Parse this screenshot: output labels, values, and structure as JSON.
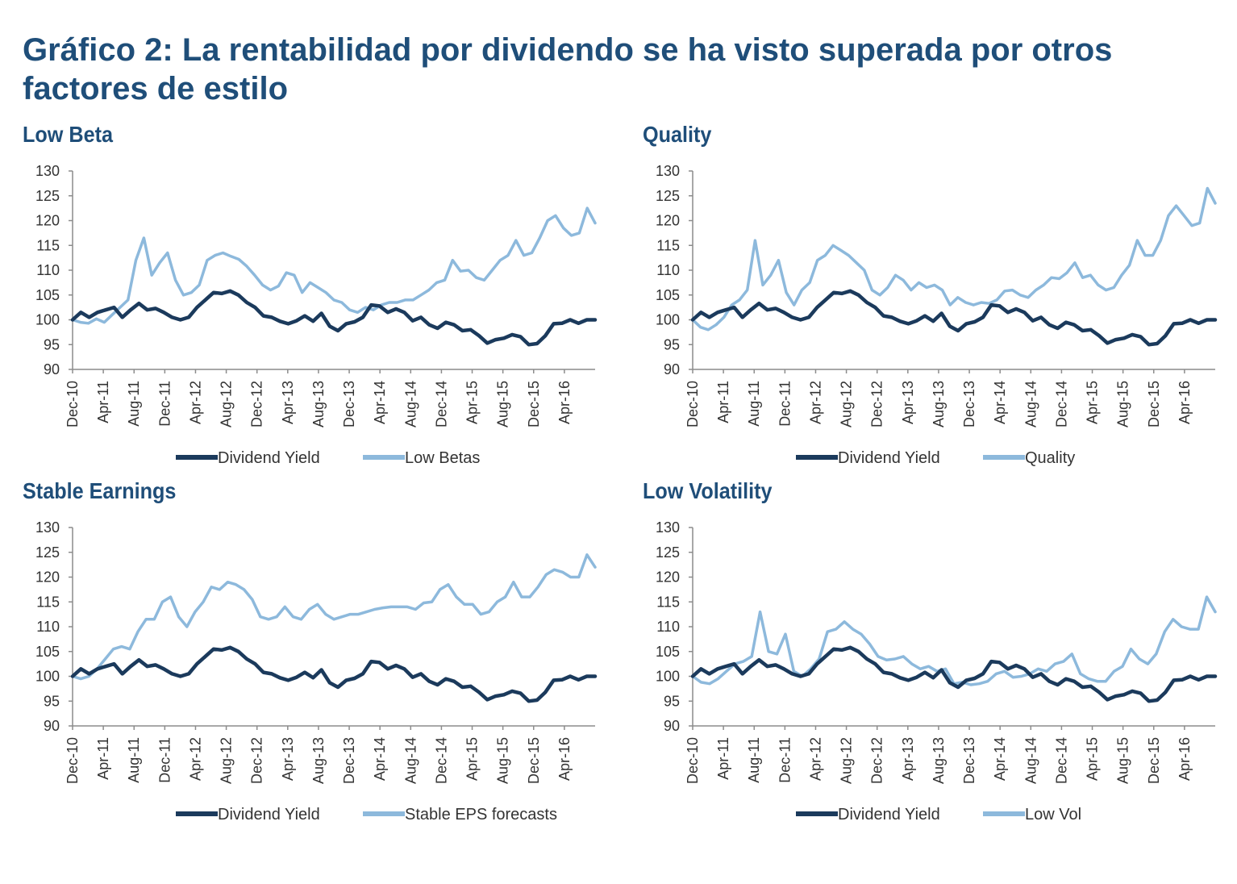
{
  "title": "Gráfico 2: La rentabilidad por dividendo se ha visto superada por otros factores de estilo",
  "colors": {
    "title": "#1f4e79",
    "dividend_yield": "#1b3a5c",
    "factor": "#8db9dc",
    "axis": "#8c8c8c",
    "text": "#333333"
  },
  "chart_data": [
    {
      "type": "line",
      "title": "Low Beta",
      "xlabel": "",
      "ylabel": "",
      "ylim": [
        90,
        130
      ],
      "yticks": [
        90,
        95,
        100,
        105,
        110,
        115,
        120,
        125,
        130
      ],
      "x_ticks": [
        "Dec-10",
        "Apr-11",
        "Aug-11",
        "Dec-11",
        "Apr-12",
        "Aug-12",
        "Dec-12",
        "Apr-13",
        "Aug-13",
        "Dec-13",
        "Apr-14",
        "Aug-14",
        "Dec-14",
        "Apr-15",
        "Aug-15",
        "Dec-15",
        "Apr-16"
      ],
      "grid": false,
      "legend": "bottom",
      "series": [
        {
          "name": "Dividend Yield",
          "color": "#1b3a5c",
          "width": 4.5,
          "values": [
            100,
            101.5,
            100.5,
            101.5,
            102,
            102.5,
            100.5,
            102,
            103.3,
            102,
            102.3,
            101.5,
            100.5,
            100,
            100.5,
            102.5,
            104,
            105.5,
            105.3,
            105.8,
            105,
            103.5,
            102.5,
            100.8,
            100.5,
            99.7,
            99.2,
            99.8,
            100.8,
            99.7,
            101.3,
            98.7,
            97.8,
            99.2,
            99.6,
            100.5,
            103,
            102.8,
            101.5,
            102.2,
            101.5,
            99.8,
            100.5,
            99,
            98.3,
            99.5,
            99,
            97.8,
            98,
            96.8,
            95.3,
            96,
            96.3,
            97,
            96.6,
            95,
            95.2,
            96.8,
            99.2,
            99.3,
            100,
            99.3,
            100,
            100
          ]
        },
        {
          "name": "Low Betas",
          "color": "#8db9dc",
          "width": 3.5,
          "values": [
            100,
            99.5,
            99.3,
            100.2,
            99.5,
            101,
            102.5,
            104,
            112,
            116.5,
            109,
            111.5,
            113.5,
            108,
            105,
            105.5,
            107,
            112,
            113,
            113.5,
            112.8,
            112.2,
            110.8,
            109,
            107,
            106,
            106.8,
            109.5,
            109,
            105.5,
            107.5,
            106.5,
            105.5,
            104,
            103.5,
            102,
            101.5,
            102.5,
            102,
            103,
            103.5,
            103.5,
            104,
            104,
            105,
            106,
            107.5,
            108,
            112,
            109.8,
            110,
            108.5,
            108,
            110,
            112,
            113,
            116,
            113,
            113.5,
            116.5,
            120,
            121,
            118.5,
            117,
            117.5,
            122.5,
            119.5
          ]
        }
      ]
    },
    {
      "type": "line",
      "title": "Quality",
      "xlabel": "",
      "ylabel": "",
      "ylim": [
        90,
        130
      ],
      "yticks": [
        90,
        95,
        100,
        105,
        110,
        115,
        120,
        125,
        130
      ],
      "x_ticks": [
        "Dec-10",
        "Apr-11",
        "Aug-11",
        "Dec-11",
        "Apr-12",
        "Aug-12",
        "Dec-12",
        "Apr-13",
        "Aug-13",
        "Dec-13",
        "Apr-14",
        "Aug-14",
        "Dec-14",
        "Apr-15",
        "Aug-15",
        "Dec-15",
        "Apr-16"
      ],
      "grid": false,
      "legend": "bottom",
      "series": [
        {
          "name": "Dividend Yield",
          "color": "#1b3a5c",
          "width": 4.5,
          "values": [
            100,
            101.5,
            100.5,
            101.5,
            102,
            102.5,
            100.5,
            102,
            103.3,
            102,
            102.3,
            101.5,
            100.5,
            100,
            100.5,
            102.5,
            104,
            105.5,
            105.3,
            105.8,
            105,
            103.5,
            102.5,
            100.8,
            100.5,
            99.7,
            99.2,
            99.8,
            100.8,
            99.7,
            101.3,
            98.7,
            97.8,
            99.2,
            99.6,
            100.5,
            103,
            102.8,
            101.5,
            102.2,
            101.5,
            99.8,
            100.5,
            99,
            98.3,
            99.5,
            99,
            97.8,
            98,
            96.8,
            95.3,
            96,
            96.3,
            97,
            96.6,
            95,
            95.2,
            96.8,
            99.2,
            99.3,
            100,
            99.3,
            100,
            100
          ]
        },
        {
          "name": "Quality",
          "color": "#8db9dc",
          "width": 3.5,
          "values": [
            100,
            98.5,
            98,
            99,
            100.5,
            103,
            104,
            106,
            116,
            107,
            109,
            112,
            105.5,
            103,
            106,
            107.5,
            112,
            113,
            115,
            114,
            113,
            111.5,
            110,
            106,
            105,
            106.5,
            109,
            108,
            106,
            107.5,
            106.5,
            107,
            106,
            103,
            104.5,
            103.5,
            103,
            103.5,
            103.3,
            104,
            105.8,
            106,
            105,
            104.5,
            106,
            107,
            108.5,
            108.3,
            109.5,
            111.5,
            108.5,
            109,
            107,
            106,
            106.5,
            109,
            111,
            116,
            113,
            113,
            116,
            121,
            123,
            121,
            119,
            119.5,
            126.5,
            123.5
          ]
        }
      ]
    },
    {
      "type": "line",
      "title": "Stable Earnings",
      "xlabel": "",
      "ylabel": "",
      "ylim": [
        90,
        130
      ],
      "yticks": [
        90,
        95,
        100,
        105,
        110,
        115,
        120,
        125,
        130
      ],
      "x_ticks": [
        "Dec-10",
        "Apr-11",
        "Aug-11",
        "Dec-11",
        "Apr-12",
        "Aug-12",
        "Dec-12",
        "Apr-13",
        "Aug-13",
        "Dec-13",
        "Apr-14",
        "Aug-14",
        "Dec-14",
        "Apr-15",
        "Aug-15",
        "Dec-15",
        "Apr-16"
      ],
      "grid": false,
      "legend": "bottom",
      "series": [
        {
          "name": "Dividend Yield",
          "color": "#1b3a5c",
          "width": 4.5,
          "values": [
            100,
            101.5,
            100.5,
            101.5,
            102,
            102.5,
            100.5,
            102,
            103.3,
            102,
            102.3,
            101.5,
            100.5,
            100,
            100.5,
            102.5,
            104,
            105.5,
            105.3,
            105.8,
            105,
            103.5,
            102.5,
            100.8,
            100.5,
            99.7,
            99.2,
            99.8,
            100.8,
            99.7,
            101.3,
            98.7,
            97.8,
            99.2,
            99.6,
            100.5,
            103,
            102.8,
            101.5,
            102.2,
            101.5,
            99.8,
            100.5,
            99,
            98.3,
            99.5,
            99,
            97.8,
            98,
            96.8,
            95.3,
            96,
            96.3,
            97,
            96.6,
            95,
            95.2,
            96.8,
            99.2,
            99.3,
            100,
            99.3,
            100,
            100
          ]
        },
        {
          "name": "Stable EPS forecasts",
          "color": "#8db9dc",
          "width": 3.5,
          "values": [
            100,
            99.5,
            100,
            101.5,
            103.5,
            105.5,
            106,
            105.5,
            109,
            111.5,
            111.5,
            115,
            116,
            112,
            110,
            113,
            115,
            118,
            117.5,
            119,
            118.5,
            117.5,
            115.5,
            112,
            111.5,
            112,
            114,
            112,
            111.5,
            113.5,
            114.5,
            112.5,
            111.5,
            112,
            112.5,
            112.5,
            113,
            113.5,
            113.8,
            114,
            114,
            114,
            113.5,
            114.8,
            115,
            117.5,
            118.5,
            116,
            114.5,
            114.5,
            112.5,
            113,
            115,
            116,
            119,
            116,
            116,
            118,
            120.5,
            121.5,
            121,
            120,
            120,
            124.5,
            122
          ]
        }
      ]
    },
    {
      "type": "line",
      "title": "Low Volatility",
      "xlabel": "",
      "ylabel": "",
      "ylim": [
        90,
        130
      ],
      "yticks": [
        90,
        95,
        100,
        105,
        110,
        115,
        120,
        125,
        130
      ],
      "x_ticks": [
        "Dec-10",
        "Apr-11",
        "Aug-11",
        "Dec-11",
        "Apr-12",
        "Aug-12",
        "Dec-12",
        "Apr-13",
        "Aug-13",
        "Dec-13",
        "Apr-14",
        "Aug-14",
        "Dec-14",
        "Apr-15",
        "Aug-15",
        "Dec-15",
        "Apr-16"
      ],
      "grid": false,
      "legend": "bottom",
      "series": [
        {
          "name": "Dividend Yield",
          "color": "#1b3a5c",
          "width": 4.5,
          "values": [
            100,
            101.5,
            100.5,
            101.5,
            102,
            102.5,
            100.5,
            102,
            103.3,
            102,
            102.3,
            101.5,
            100.5,
            100,
            100.5,
            102.5,
            104,
            105.5,
            105.3,
            105.8,
            105,
            103.5,
            102.5,
            100.8,
            100.5,
            99.7,
            99.2,
            99.8,
            100.8,
            99.7,
            101.3,
            98.7,
            97.8,
            99.2,
            99.6,
            100.5,
            103,
            102.8,
            101.5,
            102.2,
            101.5,
            99.8,
            100.5,
            99,
            98.3,
            99.5,
            99,
            97.8,
            98,
            96.8,
            95.3,
            96,
            96.3,
            97,
            96.6,
            95,
            95.2,
            96.8,
            99.2,
            99.3,
            100,
            99.3,
            100,
            100
          ]
        },
        {
          "name": "Low Vol",
          "color": "#8db9dc",
          "width": 3.5,
          "values": [
            100,
            98.8,
            98.5,
            99.5,
            101,
            102.5,
            103,
            104,
            113,
            105,
            104.5,
            108.5,
            101,
            100,
            101.5,
            103.5,
            109,
            109.5,
            111,
            109.5,
            108.5,
            106.5,
            104,
            103.3,
            103.5,
            104,
            102.5,
            101.5,
            102,
            101,
            101.5,
            98.5,
            98.8,
            98.3,
            98.5,
            99,
            100.5,
            101,
            99.8,
            100,
            100.5,
            101.5,
            101,
            102.5,
            103,
            104.5,
            100.5,
            99.5,
            99,
            99,
            101,
            102,
            105.5,
            103.5,
            102.5,
            104.5,
            109,
            111.5,
            110,
            109.5,
            109.5,
            116,
            113
          ]
        }
      ]
    }
  ]
}
